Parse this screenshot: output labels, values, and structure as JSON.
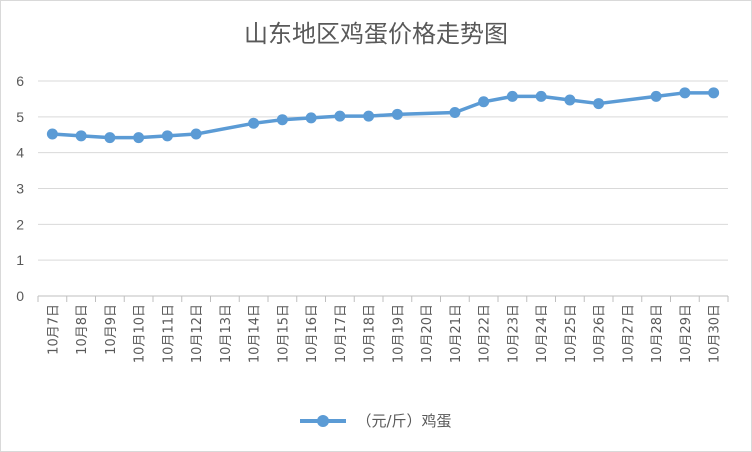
{
  "chart_data": {
    "type": "line",
    "title": "山东地区鸡蛋价格走势图",
    "categories": [
      "10月7日",
      "10月8日",
      "10月9日",
      "10月10日",
      "10月11日",
      "10月12日",
      "10月13日",
      "10月14日",
      "10月15日",
      "10月16日",
      "10月17日",
      "10月18日",
      "10月19日",
      "10月20日",
      "10月21日",
      "10月22日",
      "10月23日",
      "10月24日",
      "10月25日",
      "10月26日",
      "10月27日",
      "10月28日",
      "10月29日",
      "10月30日"
    ],
    "series": [
      {
        "name": "（元/斤）鸡蛋",
        "color": "#5b9bd5",
        "values": [
          4.52,
          4.47,
          4.42,
          4.42,
          4.47,
          4.52,
          null,
          4.82,
          4.92,
          4.97,
          5.02,
          5.02,
          5.07,
          null,
          5.12,
          5.42,
          5.57,
          5.57,
          5.47,
          5.37,
          null,
          5.57,
          5.67,
          5.67
        ]
      }
    ],
    "ylim": [
      0,
      6
    ],
    "yticks": [
      "0",
      "1",
      "2",
      "3",
      "4",
      "5",
      "6"
    ],
    "grid": true,
    "legend_position": "bottom"
  }
}
